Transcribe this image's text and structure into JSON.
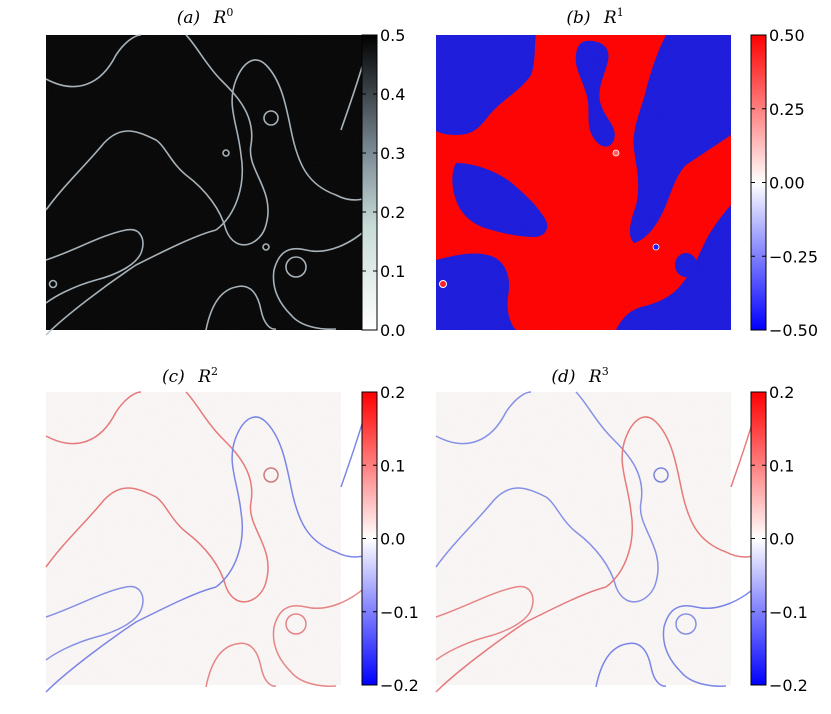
{
  "chart_data": [
    {
      "type": "heatmap",
      "panel": "a",
      "title": "(a)  R⁰",
      "title_label": "(a)",
      "title_symbol": "R",
      "title_sup": "0",
      "colormap": "black-to-white (bone)",
      "colorbar": {
        "min": 0.0,
        "max": 0.5,
        "ticks": [
          "0.0",
          "0.1",
          "0.2",
          "0.3",
          "0.4",
          "0.5"
        ],
        "tick_values": [
          0,
          0.1,
          0.2,
          0.3,
          0.4,
          0.5
        ],
        "colors": [
          "#ffffff",
          "#8fa8a8",
          "#000000"
        ]
      },
      "description": "mostly ~0 (black) with thin bright interface contours"
    },
    {
      "type": "heatmap",
      "panel": "b",
      "title": "(b)  R¹",
      "title_label": "(b)",
      "title_symbol": "R",
      "title_sup": "1",
      "colormap": "bwr",
      "colorbar": {
        "min": -0.5,
        "max": 0.5,
        "ticks": [
          "−0.50",
          "−0.25",
          "0.00",
          "0.25",
          "0.50"
        ],
        "tick_values": [
          -0.5,
          -0.25,
          0,
          0.25,
          0.5
        ],
        "colors": [
          "#0000ff",
          "#ffffff",
          "#ff0000"
        ]
      },
      "description": "two phases: +0.5 (red) and -0.5 (blue) domains"
    },
    {
      "type": "heatmap",
      "panel": "c",
      "title": "(c)  R²",
      "title_label": "(c)",
      "title_symbol": "R",
      "title_sup": "2",
      "colormap": "bwr",
      "colorbar": {
        "min": -0.2,
        "max": 0.2,
        "ticks": [
          "−0.2",
          "−0.1",
          "0.0",
          "0.1",
          "0.2"
        ],
        "tick_values": [
          -0.2,
          -0.1,
          0,
          0.1,
          0.2
        ],
        "colors": [
          "#0000ff",
          "#ffffff",
          "#ff0000"
        ]
      },
      "description": "near zero with faint red/blue along interfaces"
    },
    {
      "type": "heatmap",
      "panel": "d",
      "title": "(d)  R³",
      "title_label": "(d)",
      "title_symbol": "R",
      "title_sup": "3",
      "colormap": "bwr",
      "colorbar": {
        "min": -0.2,
        "max": 0.2,
        "ticks": [
          "−0.2",
          "−0.1",
          "0.0",
          "0.1",
          "0.2"
        ],
        "tick_values": [
          -0.2,
          -0.1,
          0,
          0.1,
          0.2
        ],
        "colors": [
          "#0000ff",
          "#ffffff",
          "#ff0000"
        ]
      },
      "description": "near zero with faint red/blue along interfaces"
    }
  ]
}
